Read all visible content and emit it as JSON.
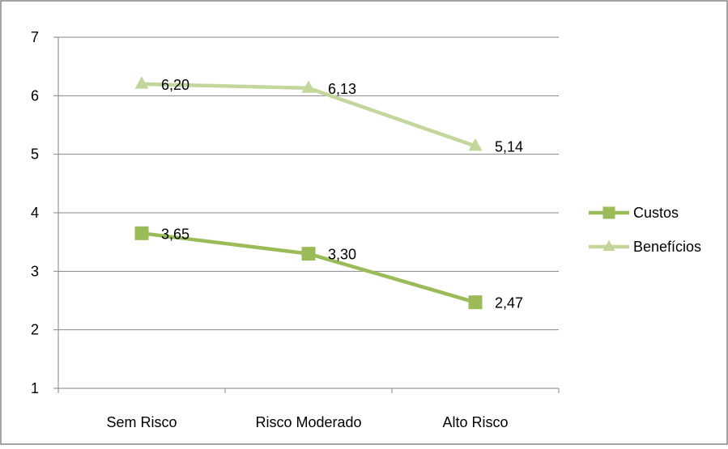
{
  "chart_data": {
    "type": "line",
    "categories": [
      "Sem Risco",
      "Risco Moderado",
      "Alto Risco"
    ],
    "series": [
      {
        "name": "Custos",
        "values": [
          3.65,
          3.3,
          2.47
        ],
        "labels": [
          "3,65",
          "3,30",
          "2,47"
        ],
        "color": "#9bbb59",
        "marker": "square"
      },
      {
        "name": "Benefícios",
        "values": [
          6.2,
          6.13,
          5.14
        ],
        "labels": [
          "6,20",
          "6,13",
          "5,14"
        ],
        "color": "#c3d69b",
        "marker": "triangle"
      }
    ],
    "ylim": [
      1,
      7
    ],
    "yticks": [
      "1",
      "2",
      "3",
      "4",
      "5",
      "6",
      "7"
    ],
    "grid": true,
    "legend": "right",
    "title": "",
    "xlabel": "",
    "ylabel": ""
  }
}
